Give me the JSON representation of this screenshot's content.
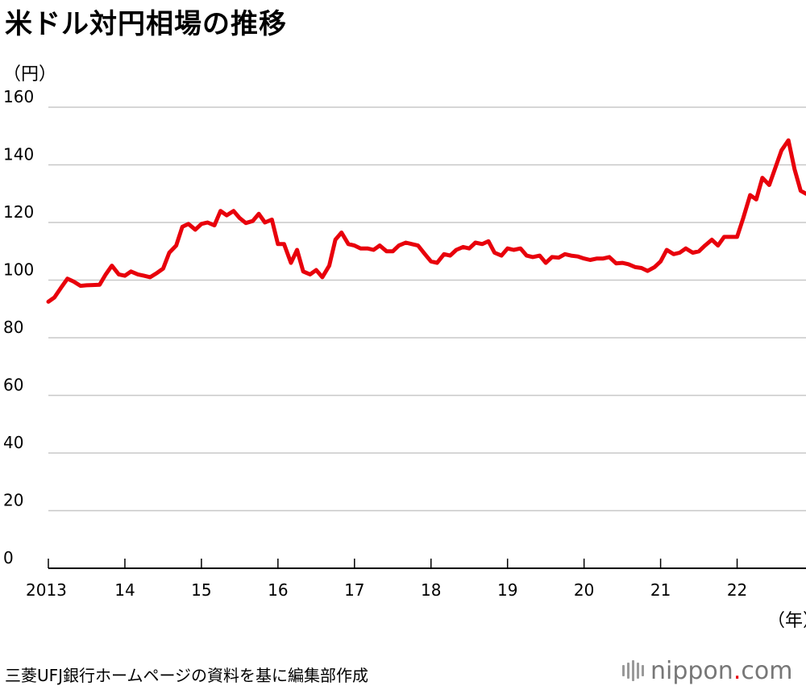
{
  "title": "米ドル対円相場の推移",
  "footer": {
    "source": "三菱UFJ銀行ホームページの資料を基に編集部作成",
    "logo_text": "nippon",
    "logo_dot": ".",
    "logo_com": "com"
  },
  "chart_data": {
    "type": "line",
    "title": "米ドル対円相場の推移",
    "ylabel": "（円）",
    "xlabel": "（年）",
    "ylim": [
      0,
      160
    ],
    "xlim": [
      2013.0,
      2022.9
    ],
    "yticks": [
      0,
      20,
      40,
      60,
      80,
      100,
      120,
      140,
      160
    ],
    "xticks": [
      {
        "value": 2013,
        "label": "2013"
      },
      {
        "value": 2014,
        "label": "14"
      },
      {
        "value": 2015,
        "label": "15"
      },
      {
        "value": 2016,
        "label": "16"
      },
      {
        "value": 2017,
        "label": "17"
      },
      {
        "value": 2018,
        "label": "18"
      },
      {
        "value": 2019,
        "label": "19"
      },
      {
        "value": 2020,
        "label": "20"
      },
      {
        "value": 2021,
        "label": "21"
      },
      {
        "value": 2022,
        "label": "22"
      }
    ],
    "grid": true,
    "colors": {
      "line": "#e8000b",
      "grid": "#c8c8c8",
      "axis": "#000000"
    },
    "series": [
      {
        "x": [
          2013.0,
          2013.08,
          2013.17,
          2013.25,
          2013.33,
          2013.42,
          2013.5,
          2013.58,
          2013.67,
          2013.75,
          2013.83,
          2013.92,
          2014.0,
          2014.08,
          2014.17,
          2014.25,
          2014.33,
          2014.42,
          2014.5,
          2014.58,
          2014.67,
          2014.75,
          2014.83,
          2014.92,
          2015.0,
          2015.08,
          2015.17,
          2015.25,
          2015.33,
          2015.42,
          2015.5,
          2015.58,
          2015.67,
          2015.75,
          2015.83,
          2015.92,
          2016.0,
          2016.08,
          2016.17,
          2016.25,
          2016.33,
          2016.42,
          2016.5,
          2016.58,
          2016.67,
          2016.75,
          2016.83,
          2016.92,
          2017.0,
          2017.08,
          2017.17,
          2017.25,
          2017.33,
          2017.42,
          2017.5,
          2017.58,
          2017.67,
          2017.75,
          2017.83,
          2017.92,
          2018.0,
          2018.08,
          2018.17,
          2018.25,
          2018.33,
          2018.42,
          2018.5,
          2018.58,
          2018.67,
          2018.75,
          2018.83,
          2018.92,
          2019.0,
          2019.08,
          2019.17,
          2019.25,
          2019.33,
          2019.42,
          2019.5,
          2019.58,
          2019.67,
          2019.75,
          2019.83,
          2019.92,
          2020.0,
          2020.08,
          2020.17,
          2020.25,
          2020.33,
          2020.42,
          2020.5,
          2020.58,
          2020.67,
          2020.75,
          2020.83,
          2020.92,
          2021.0,
          2021.08,
          2021.17,
          2021.25,
          2021.33,
          2021.42,
          2021.5,
          2021.58,
          2021.67,
          2021.75,
          2021.83,
          2021.92,
          2022.0,
          2022.08,
          2022.17,
          2022.25,
          2022.33,
          2022.42,
          2022.5,
          2022.58,
          2022.67,
          2022.75,
          2022.83,
          2022.9
        ],
        "y": [
          92.5,
          94.0,
          97.5,
          100.5,
          99.5,
          98.0,
          98.2,
          98.3,
          98.4,
          102.0,
          105.0,
          102.0,
          101.5,
          103.0,
          102.0,
          101.5,
          101.0,
          102.5,
          104.0,
          109.5,
          112.0,
          118.5,
          119.5,
          117.5,
          119.5,
          120.0,
          119.0,
          124.0,
          122.5,
          124.0,
          121.5,
          119.8,
          120.5,
          123.0,
          120.0,
          121.0,
          112.5,
          112.5,
          106.0,
          110.5,
          103.0,
          102.0,
          103.5,
          101.0,
          105.0,
          114.0,
          116.5,
          112.5,
          112.0,
          111.0,
          111.0,
          110.5,
          112.0,
          110.0,
          110.0,
          112.0,
          113.0,
          112.5,
          112.0,
          109.0,
          106.5,
          106.0,
          109.0,
          108.5,
          110.5,
          111.5,
          111.0,
          113.0,
          112.5,
          113.5,
          109.5,
          108.5,
          111.0,
          110.5,
          111.0,
          108.5,
          108.0,
          108.5,
          106.0,
          108.0,
          107.8,
          109.0,
          108.5,
          108.2,
          107.5,
          107.0,
          107.5,
          107.5,
          108.0,
          105.8,
          106.0,
          105.5,
          104.5,
          104.2,
          103.2,
          104.5,
          106.5,
          110.5,
          109.0,
          109.5,
          111.0,
          109.5,
          110.0,
          112.0,
          114.0,
          112.0,
          115.0,
          115.0,
          115.0,
          121.5,
          129.5,
          128.0,
          135.5,
          133.0,
          139.0,
          145.0,
          148.5,
          138.5,
          131.0,
          130.0
        ]
      }
    ]
  }
}
